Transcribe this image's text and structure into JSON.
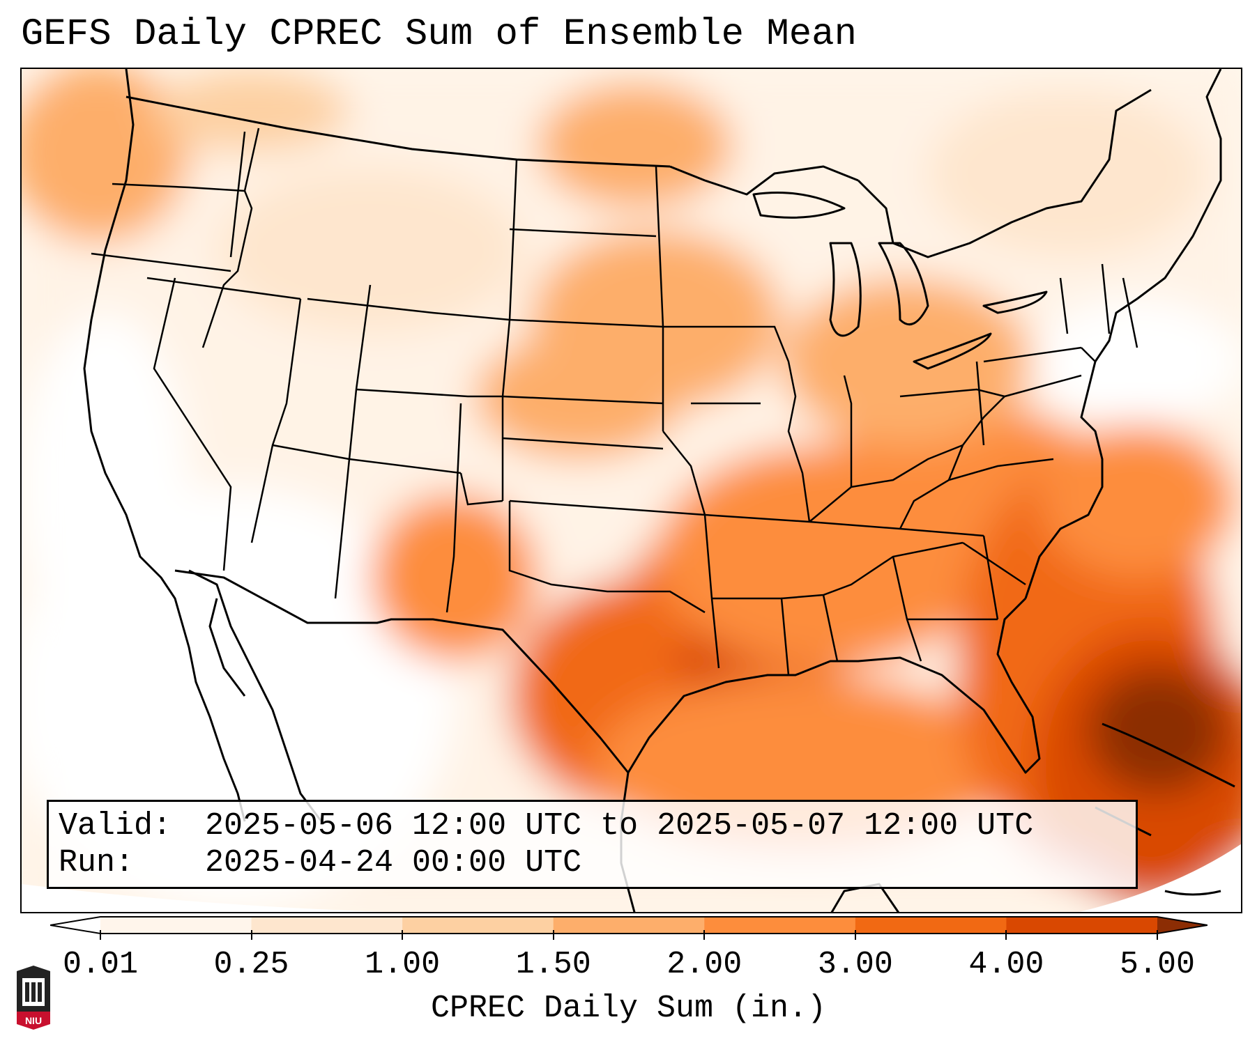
{
  "title": "GEFS Daily CPREC Sum of Ensemble Mean",
  "info": {
    "valid_label": "Valid:",
    "valid_value": "2025-05-06 12:00 UTC to 2025-05-07 12:00 UTC",
    "run_label": "Run:",
    "run_value": "2025-04-24 00:00 UTC"
  },
  "colorbar": {
    "title": "CPREC Daily Sum (in.)",
    "ticks": [
      "0.01",
      "0.25",
      "1.00",
      "1.50",
      "2.00",
      "3.00",
      "4.00",
      "5.00"
    ],
    "colors": [
      "#fff5eb",
      "#fee6ce",
      "#fdd0a2",
      "#fdae6b",
      "#fd8d3c",
      "#f16913",
      "#d94801",
      "#8c2d04"
    ]
  },
  "logo": {
    "text": "NIU",
    "color": "#c8102e"
  }
}
